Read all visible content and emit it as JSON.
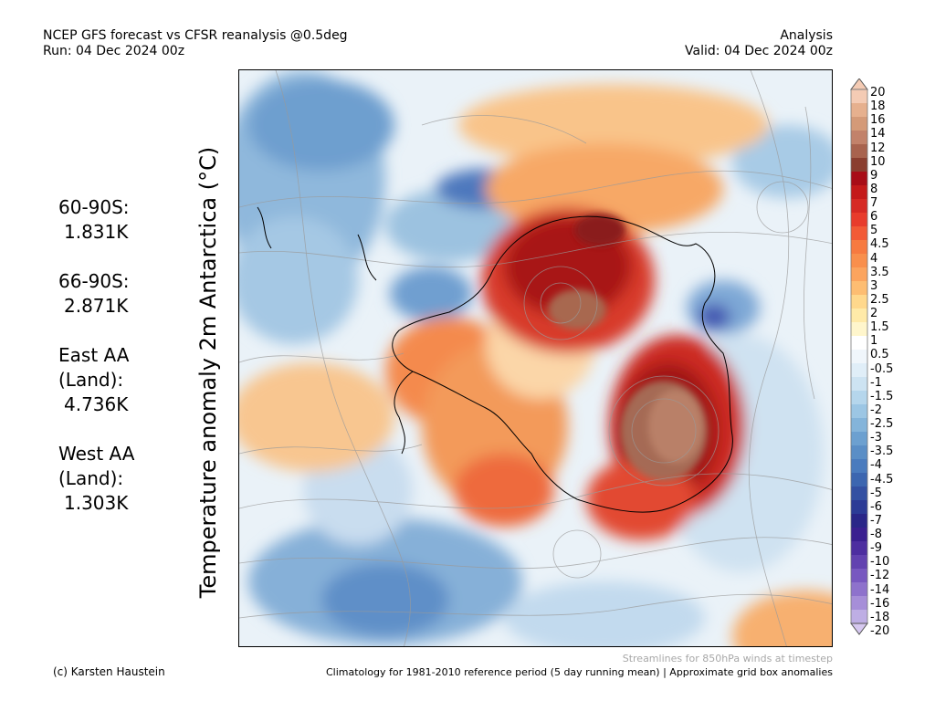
{
  "header": {
    "title_line1": "NCEP GFS forecast vs CFSR reanalysis @0.5deg",
    "title_line2": "Run: 04 Dec 2024 00z",
    "right_line1": "Analysis",
    "right_line2": "Valid: 04 Dec 2024 00z"
  },
  "y_label": "Temperature anomaly 2m Antarctica (°C)",
  "stats": [
    {
      "label": "60-90S:",
      "value": "1.831K"
    },
    {
      "label": "66-90S:",
      "value": "2.871K"
    },
    {
      "label": "East AA (Land):",
      "value": "4.736K"
    },
    {
      "label": "West AA (Land):",
      "value": "1.303K"
    }
  ],
  "colorbar": {
    "labels": [
      "20",
      "18",
      "16",
      "14",
      "12",
      "10",
      "9",
      "8",
      "7",
      "6",
      "5",
      "4.5",
      "4",
      "3.5",
      "3",
      "2.5",
      "2",
      "1.5",
      "1",
      "0.5",
      "-0.5",
      "-1",
      "-1.5",
      "-2",
      "-2.5",
      "-3",
      "-3.5",
      "-4",
      "-4.5",
      "-5",
      "-6",
      "-7",
      "-8",
      "-9",
      "-10",
      "-12",
      "-14",
      "-16",
      "-18",
      "-20"
    ],
    "colors": [
      "#f4cbb4",
      "#e6b08e",
      "#d49a78",
      "#c2826a",
      "#a8634e",
      "#8a3e2f",
      "#a80d17",
      "#c41a1a",
      "#d62a24",
      "#e83c2c",
      "#f25a36",
      "#f77a40",
      "#f98f4c",
      "#fba45e",
      "#fdbd72",
      "#ffd88c",
      "#ffeaa8",
      "#fff6cc",
      "#ffffff",
      "#f0f6fb",
      "#e0eef8",
      "#cde3f2",
      "#b5d6ec",
      "#9cc6e4",
      "#84b4da",
      "#6ca0d0",
      "#5a8ec6",
      "#4a7bbe",
      "#3c66b0",
      "#3350a2",
      "#2c3b96",
      "#2a2688",
      "#3a1f90",
      "#4d2ea0",
      "#6242b0",
      "#7858c0",
      "#8e72cc",
      "#a68ed8",
      "#beaee4"
    ]
  },
  "footer": {
    "credit": "(c) Karsten Haustein",
    "climatology": "Climatology for 1981-2010 reference period (5 day running mean) | Approximate grid box anomalies",
    "streamlines": "Streamlines for 850hPa winds at timestep"
  }
}
